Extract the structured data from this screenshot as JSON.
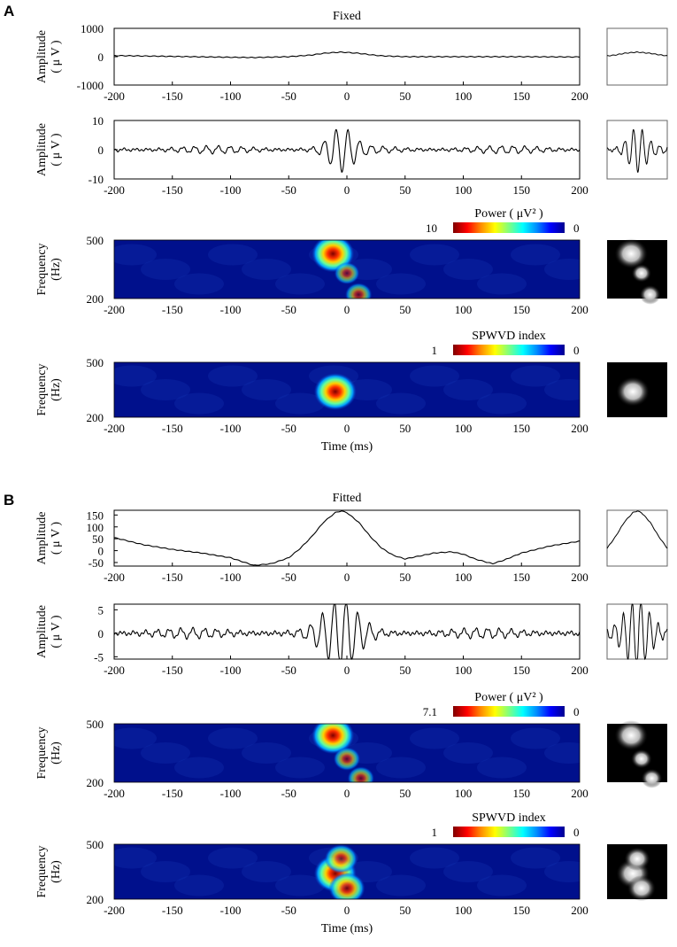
{
  "panel_labels": [
    "A",
    "B"
  ],
  "colorbar_colors": [
    "#7f0000",
    "#ff0000",
    "#ff8c00",
    "#ffff00",
    "#7fff7f",
    "#00ffff",
    "#008cff",
    "#0000ff",
    "#00008f"
  ],
  "heatmap_colors": {
    "background": "#00108c",
    "hot": "#cc0000"
  },
  "chart_data": [
    {
      "type": "line",
      "panel": "A",
      "title": "Fixed",
      "xlabel": "",
      "ylabel": "Amplitude\n( μ V )",
      "xlim": [
        -200,
        200
      ],
      "ylim": [
        -1000,
        1000
      ],
      "xticks": [
        "-200",
        "-150",
        "-100",
        "-50",
        "0",
        "50",
        "100",
        "150",
        "200"
      ],
      "yticks": [
        "1000",
        "0",
        "-1000"
      ],
      "series": [
        {
          "x": [
            -200,
            -150,
            -100,
            -80,
            -50,
            -30,
            -20,
            -10,
            -5,
            0,
            10,
            20,
            30,
            50,
            100,
            150,
            200
          ],
          "values": [
            40,
            10,
            -20,
            -30,
            0,
            60,
            120,
            150,
            160,
            150,
            120,
            70,
            30,
            0,
            0,
            0,
            -10
          ]
        }
      ],
      "has_inset": true
    },
    {
      "type": "line",
      "panel": "A",
      "title": "",
      "xlabel": "",
      "ylabel": "Amplitude\n( μ V )",
      "xlim": [
        -200,
        200
      ],
      "ylim": [
        -10,
        10
      ],
      "xticks": [
        "-200",
        "-150",
        "-100",
        "-50",
        "0",
        "50",
        "100",
        "150",
        "200"
      ],
      "yticks": [
        "10",
        "0",
        "-10"
      ],
      "signal": "oscillation",
      "baseline_amplitude": 1.2,
      "burst_center": -5,
      "burst_width": 14,
      "burst_peak": 6.5,
      "has_inset": true
    },
    {
      "type": "heatmap",
      "panel": "A",
      "title": "",
      "legend_title": "Power ( μV² )",
      "colorbar_range": [
        "10",
        "0"
      ],
      "xlabel": "",
      "ylabel": "Frequency\n(Hz)",
      "xlim": [
        -200,
        200
      ],
      "ylim": [
        200,
        500
      ],
      "xticks": [
        "-200",
        "-150",
        "-100",
        "-50",
        "0",
        "50",
        "100",
        "150",
        "200"
      ],
      "yticks": [
        "500",
        "200"
      ],
      "hotspots": [
        {
          "x": -12,
          "y": 430,
          "intensity": 1.0
        },
        {
          "x": 0,
          "y": 330,
          "intensity": 0.45
        },
        {
          "x": 10,
          "y": 220,
          "intensity": 0.5
        }
      ],
      "has_inset": true
    },
    {
      "type": "heatmap",
      "panel": "A",
      "title": "",
      "legend_title": "SPWVD index",
      "colorbar_range": [
        "1",
        "0"
      ],
      "xlabel": "Time (ms)",
      "ylabel": "Frequency\n(Hz)",
      "xlim": [
        -200,
        200
      ],
      "ylim": [
        200,
        500
      ],
      "xticks": [
        "-200",
        "-150",
        "-100",
        "-50",
        "0",
        "50",
        "100",
        "150",
        "200"
      ],
      "yticks": [
        "500",
        "200"
      ],
      "hotspots": [
        {
          "x": -10,
          "y": 340,
          "intensity": 1.0
        }
      ],
      "has_inset": true
    },
    {
      "type": "line",
      "panel": "B",
      "title": "Fitted",
      "xlabel": "",
      "ylabel": "Amplitude\n( μ V )",
      "xlim": [
        -200,
        200
      ],
      "ylim": [
        -65,
        170
      ],
      "xticks": [
        "-200",
        "-150",
        "-100",
        "-50",
        "0",
        "50",
        "100",
        "150",
        "200"
      ],
      "yticks": [
        "150",
        "100",
        "50",
        "0",
        "-50"
      ],
      "series": [
        {
          "x": [
            -200,
            -175,
            -150,
            -125,
            -100,
            -80,
            -65,
            -50,
            -40,
            -30,
            -20,
            -10,
            -5,
            0,
            10,
            20,
            30,
            40,
            50,
            60,
            75,
            90,
            100,
            110,
            125,
            135,
            150,
            175,
            200
          ],
          "values": [
            55,
            25,
            5,
            -10,
            -30,
            -62,
            -55,
            -30,
            10,
            60,
            120,
            160,
            167,
            160,
            120,
            60,
            10,
            -20,
            -35,
            -25,
            -10,
            -5,
            -15,
            -35,
            -55,
            -40,
            -10,
            20,
            40
          ]
        }
      ],
      "has_inset": true
    },
    {
      "type": "line",
      "panel": "B",
      "title": "",
      "xlabel": "",
      "ylabel": "Amplitude\n( μ V )",
      "xlim": [
        -200,
        200
      ],
      "ylim": [
        -5.5,
        6.2
      ],
      "xticks": [
        "-200",
        "-150",
        "-100",
        "-50",
        "0",
        "50",
        "100",
        "150",
        "200"
      ],
      "yticks": [
        "5",
        "0",
        "-5"
      ],
      "signal": "oscillation",
      "baseline_amplitude": 1.0,
      "burst_center": -5,
      "burst_width": 20,
      "burst_peak": 6.0,
      "has_inset": true
    },
    {
      "type": "heatmap",
      "panel": "B",
      "title": "",
      "legend_title": "Power ( μV² )",
      "colorbar_range": [
        "7.1",
        "0"
      ],
      "xlabel": "",
      "ylabel": "Frequency\n(Hz)",
      "xlim": [
        -200,
        200
      ],
      "ylim": [
        200,
        500
      ],
      "xticks": [
        "-200",
        "-150",
        "-100",
        "-50",
        "0",
        "50",
        "100",
        "150",
        "200"
      ],
      "yticks": [
        "500",
        "200"
      ],
      "hotspots": [
        {
          "x": -12,
          "y": 440,
          "intensity": 1.0
        },
        {
          "x": 0,
          "y": 320,
          "intensity": 0.5
        },
        {
          "x": 12,
          "y": 220,
          "intensity": 0.5
        }
      ],
      "has_inset": true
    },
    {
      "type": "heatmap",
      "panel": "B",
      "title": "",
      "legend_title": "SPWVD index",
      "colorbar_range": [
        "1",
        "0"
      ],
      "xlabel": "Time (ms)",
      "ylabel": "Frequency\n(Hz)",
      "xlim": [
        -200,
        200
      ],
      "ylim": [
        200,
        500
      ],
      "xticks": [
        "-200",
        "-150",
        "-100",
        "-50",
        "0",
        "50",
        "100",
        "150",
        "200"
      ],
      "yticks": [
        "500",
        "200"
      ],
      "hotspots": [
        {
          "x": -10,
          "y": 340,
          "intensity": 1.0
        },
        {
          "x": -5,
          "y": 420,
          "intensity": 0.7
        },
        {
          "x": 0,
          "y": 260,
          "intensity": 0.8
        }
      ],
      "has_inset": true
    }
  ]
}
